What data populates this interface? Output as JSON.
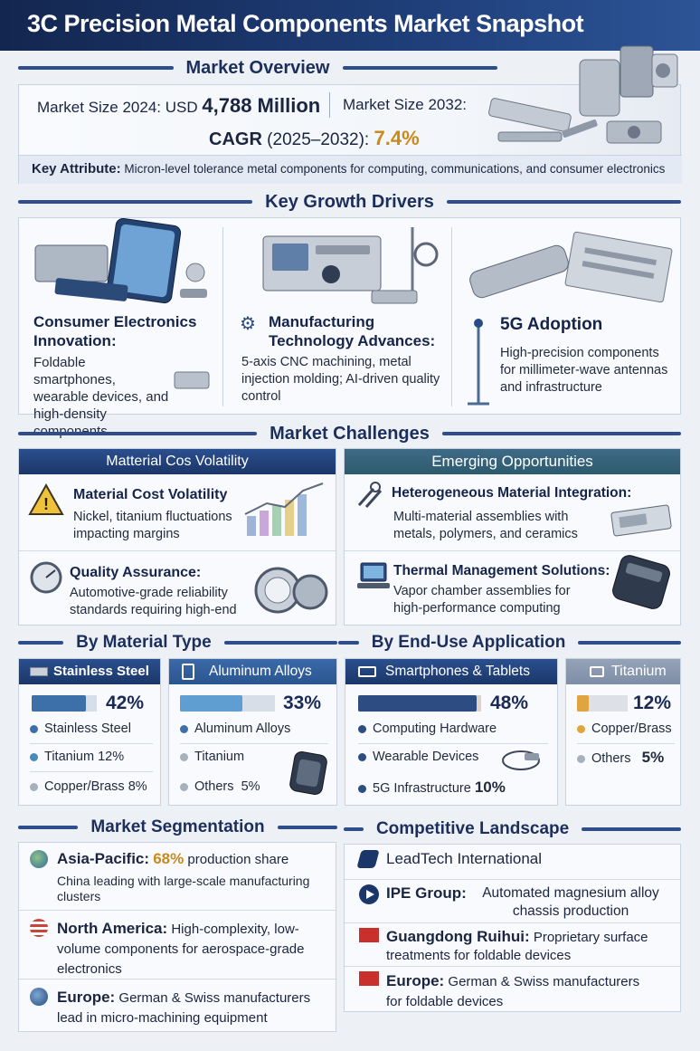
{
  "title": "3C Precision Metal Components Market Snapshot",
  "overview": {
    "heading": "Market Overview",
    "size2024_label": "Market Size 2024: USD",
    "size2024_value": "4,788 Million",
    "size2032_label": "Market Size 2032:",
    "cagr_label": "CAGR",
    "cagr_period": "(2025–2032):",
    "cagr_value": "7.4%",
    "attr_label": "Key Attribute:",
    "attr_text": "Micron-level tolerance metal components for computing, communications, and consumer electronics"
  },
  "drivers": {
    "heading": "Key Growth Drivers",
    "items": [
      {
        "title": "Consumer Electronics Innovation:",
        "body": "Foldable smartphones, wearable devices, and high-density components"
      },
      {
        "title": "Manufacturing Technology Advances:",
        "body": "5-axis CNC machining, metal injection molding; AI-driven quality control"
      },
      {
        "title": "5G Adoption",
        "body": "High-precision components for millimeter-wave antennas and infrastructure"
      }
    ]
  },
  "challenges": {
    "heading": "Market Challenges",
    "left_header": "Matterial Cos Volatility",
    "right_header": "Emerging Opportunities",
    "left_items": [
      {
        "title": "Material Cost Volatility",
        "body": "Nickel, titanium fluctuations impacting margins"
      },
      {
        "title": "Quality Assurance:",
        "body": "Automotive-grade reliability standards requiring high-end"
      }
    ],
    "right_items": [
      {
        "title": "Heterogeneous Material Integration:",
        "body": "Multi-material assemblies with metals, polymers, and ceramics"
      },
      {
        "title": "Thermal Management Solutions:",
        "body": "Vapor chamber assemblies for high-performance computing"
      }
    ]
  },
  "material": {
    "heading_left": "By Material Type",
    "heading_right": "By End-Use Application",
    "cards": [
      {
        "header": "Stainless Steel",
        "pct": "42%",
        "fill": 0.42,
        "color": "#3d6fa8",
        "rows": [
          {
            "label": "Stainless Steel",
            "value": ""
          },
          {
            "label": "Titanium",
            "value": "12%"
          },
          {
            "label": "Copper/Brass",
            "value": "8%"
          }
        ]
      },
      {
        "header": "Aluminum Alloys",
        "pct": "33%",
        "fill": 0.33,
        "color": "#5f9ed0",
        "rows": [
          {
            "label": "Aluminum Alloys",
            "value": ""
          },
          {
            "label": "Titanium",
            "value": ""
          },
          {
            "label": "Others",
            "value": "5%"
          }
        ]
      },
      {
        "header": "Smartphones & Tablets",
        "pct": "48%",
        "fill": 0.48,
        "color": "#2c4c82",
        "rows": [
          {
            "label": "Computing Hardware",
            "value": ""
          },
          {
            "label": "Wearable Devices",
            "value": ""
          },
          {
            "label": "5G Infrastructure",
            "value": "10%"
          }
        ]
      },
      {
        "header": "Titanium",
        "pct": "12%",
        "fill": 0.12,
        "color": "#e0a53e",
        "rows": [
          {
            "label": "Copper/Brass",
            "value": ""
          },
          {
            "label": "Others",
            "value": "5%"
          }
        ]
      }
    ]
  },
  "segmentation": {
    "heading": "Market Segmentation",
    "items": [
      {
        "region": "Asia-Pacific:",
        "highlight": "68%",
        "text": "production share",
        "sub": "China leading with large-scale manufacturing clusters"
      },
      {
        "region": "North America:",
        "text": "High-complexity, low-volume components for aerospace-grade electronics"
      },
      {
        "region": "Europe:",
        "text": "German & Swiss manufacturers lead in micro-machining equipment"
      }
    ]
  },
  "competitive": {
    "heading": "Competitive Landscape",
    "items": [
      {
        "name": "LeadTech International",
        "text": ""
      },
      {
        "name": "IPE Group:",
        "text": "Automated magnesium alloy chassis production"
      },
      {
        "name": "Guangdong Ruihui:",
        "text": "Proprietary surface treatments for foldable devices"
      },
      {
        "name": "Europe:",
        "text": "German & Swiss manufacturers for foldable devices"
      }
    ]
  },
  "colors": {
    "navy": "#1b3668",
    "accent_gold": "#c98a1b",
    "teal_header": "#3e6a86"
  }
}
